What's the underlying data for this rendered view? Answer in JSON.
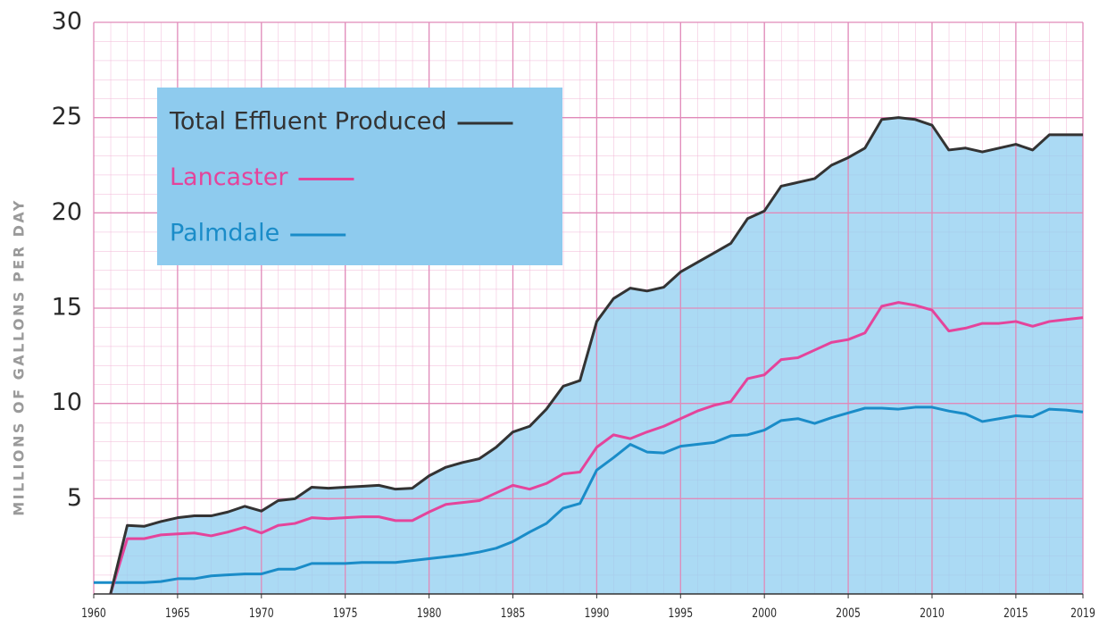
{
  "chart_data": {
    "type": "line",
    "ylabel": "MILLIONS OF GALLONS PER DAY",
    "x": [
      1960,
      1961,
      1962,
      1963,
      1964,
      1965,
      1966,
      1967,
      1968,
      1969,
      1970,
      1971,
      1972,
      1973,
      1974,
      1975,
      1976,
      1977,
      1978,
      1979,
      1980,
      1981,
      1982,
      1983,
      1984,
      1985,
      1986,
      1987,
      1988,
      1989,
      1990,
      1991,
      1992,
      1993,
      1994,
      1995,
      1996,
      1997,
      1998,
      1999,
      2000,
      2001,
      2002,
      2003,
      2004,
      2005,
      2006,
      2007,
      2008,
      2009,
      2010,
      2011,
      2012,
      2013,
      2014,
      2015,
      2016,
      2017,
      2018,
      2019
    ],
    "series": [
      {
        "name": "Total Effluent Produced",
        "color": "#333333",
        "values": [
          null,
          0,
          3.6,
          3.55,
          3.8,
          4.0,
          4.1,
          4.1,
          4.3,
          4.6,
          4.35,
          4.9,
          5.0,
          5.6,
          5.55,
          5.6,
          5.65,
          5.7,
          5.5,
          5.55,
          6.2,
          6.65,
          6.9,
          7.1,
          7.7,
          8.5,
          8.8,
          9.7,
          10.9,
          11.2,
          14.3,
          15.5,
          16.05,
          15.9,
          16.1,
          16.9,
          17.4,
          17.9,
          18.4,
          19.7,
          20.1,
          21.4,
          21.6,
          21.8,
          22.5,
          22.9,
          23.4,
          24.9,
          25.0,
          24.9,
          24.6,
          23.3,
          23.4,
          23.2,
          23.4,
          23.6,
          23.3,
          24.1,
          24.1,
          24.1
        ]
      },
      {
        "name": "Lancaster",
        "color": "#e4449b",
        "values": [
          null,
          0,
          2.9,
          2.9,
          3.1,
          3.15,
          3.2,
          3.05,
          3.25,
          3.5,
          3.2,
          3.6,
          3.7,
          4.0,
          3.95,
          4.0,
          4.05,
          4.05,
          3.85,
          3.85,
          4.3,
          4.7,
          4.8,
          4.9,
          5.3,
          5.7,
          5.5,
          5.8,
          6.3,
          6.4,
          7.7,
          8.35,
          8.15,
          8.5,
          8.8,
          9.2,
          9.6,
          9.9,
          10.1,
          11.3,
          11.5,
          12.3,
          12.4,
          12.8,
          13.2,
          13.35,
          13.7,
          15.1,
          15.3,
          15.15,
          14.9,
          13.8,
          13.95,
          14.2,
          14.2,
          14.3,
          14.05,
          14.3,
          14.4,
          14.5
        ]
      },
      {
        "name": "Palmdale",
        "color": "#1a8cc8",
        "values": [
          0.6,
          0.6,
          0.6,
          0.6,
          0.65,
          0.8,
          0.8,
          0.95,
          1.0,
          1.05,
          1.05,
          1.3,
          1.3,
          1.6,
          1.6,
          1.6,
          1.65,
          1.65,
          1.65,
          1.75,
          1.85,
          1.95,
          2.05,
          2.2,
          2.4,
          2.75,
          3.25,
          3.7,
          4.5,
          4.75,
          6.5,
          7.15,
          7.85,
          7.45,
          7.4,
          7.75,
          7.85,
          7.95,
          8.3,
          8.35,
          8.6,
          9.1,
          9.2,
          8.95,
          9.25,
          9.5,
          9.75,
          9.75,
          9.7,
          9.8,
          9.8,
          9.6,
          9.45,
          9.05,
          9.2,
          9.35,
          9.3,
          9.7,
          9.65,
          9.55
        ]
      }
    ],
    "xlim": [
      1960,
      2019
    ],
    "xticks": [
      1960,
      1965,
      1970,
      1975,
      1980,
      1985,
      1990,
      1995,
      2000,
      2005,
      2010,
      2015,
      2019
    ],
    "ylim": [
      0,
      30
    ],
    "yticks": [
      5,
      10,
      15,
      20,
      25,
      30
    ],
    "grid": true
  }
}
